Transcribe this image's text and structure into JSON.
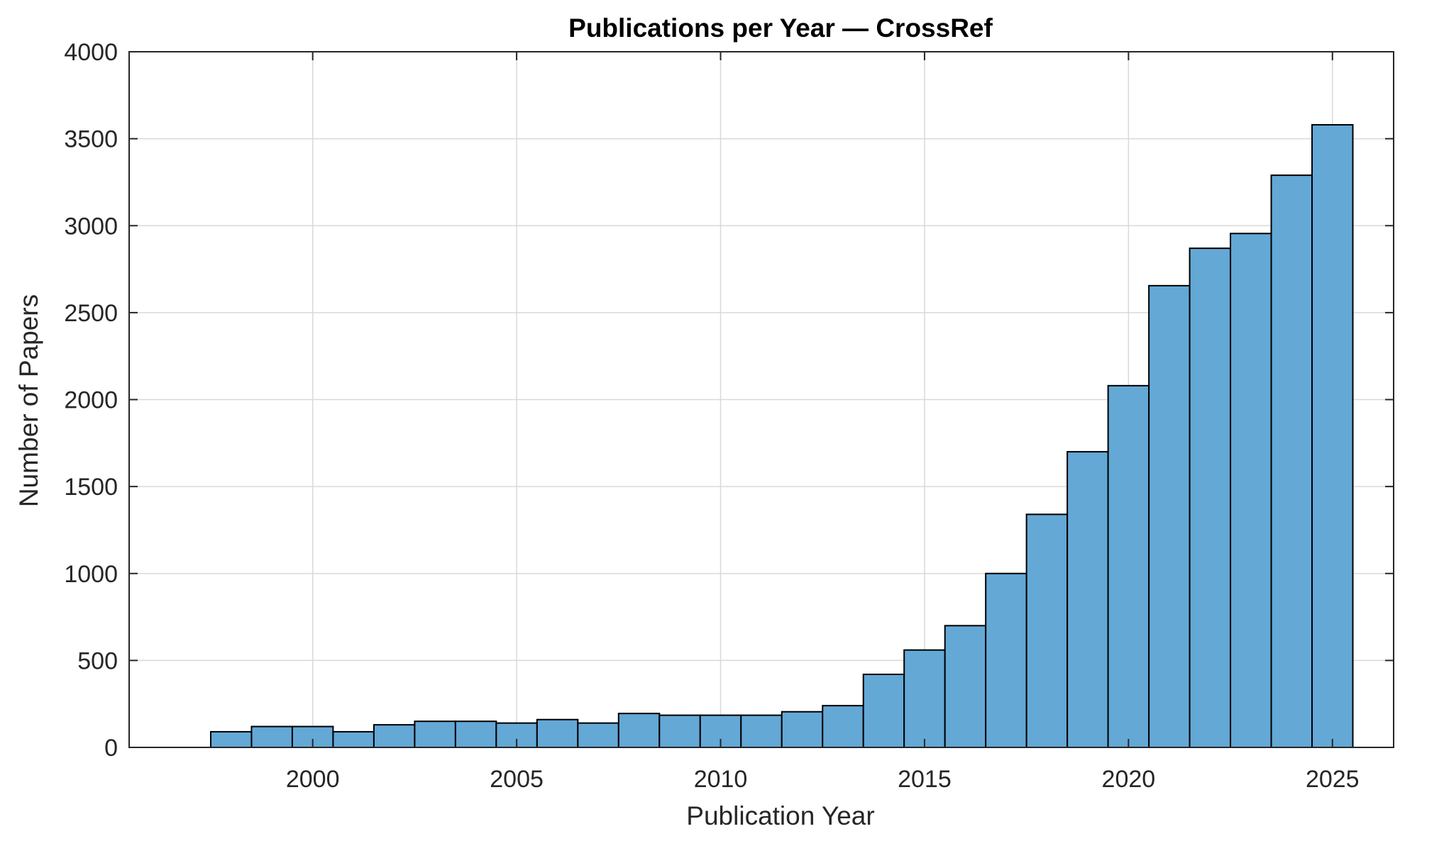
{
  "chart_data": {
    "type": "bar",
    "title": "Publications per Year — CrossRef",
    "xlabel": "Publication Year",
    "ylabel": "Number of Papers",
    "x": [
      1998,
      1999,
      2000,
      2001,
      2002,
      2003,
      2004,
      2005,
      2006,
      2007,
      2008,
      2009,
      2010,
      2011,
      2012,
      2013,
      2014,
      2015,
      2016,
      2017,
      2018,
      2019,
      2020,
      2021,
      2022,
      2023,
      2024,
      2025
    ],
    "values": [
      90,
      120,
      120,
      90,
      130,
      150,
      150,
      140,
      160,
      140,
      195,
      185,
      185,
      185,
      205,
      240,
      420,
      560,
      700,
      1000,
      1340,
      1700,
      2080,
      2655,
      2870,
      2955,
      3290,
      3580
    ],
    "xlim": [
      1995.5,
      2026.5
    ],
    "ylim": [
      0,
      4000
    ],
    "xticks": [
      "2000",
      "2005",
      "2010",
      "2015",
      "2020",
      "2025"
    ],
    "yticks": [
      "0",
      "500",
      "1000",
      "1500",
      "2000",
      "2500",
      "3000",
      "3500",
      "4000"
    ],
    "grid": true,
    "bar_color": "#64a8d6",
    "bar_edge_color": "#000000"
  }
}
